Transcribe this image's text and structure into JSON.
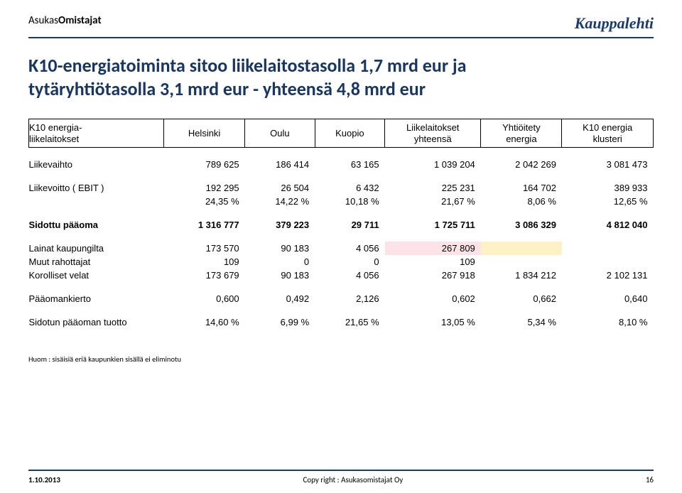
{
  "header": {
    "brand_prefix": "Asukas",
    "brand_suffix": "Omistajat",
    "brand_right": "Kauppalehti"
  },
  "title_line1": "K10-energiatoiminta sitoo liikelaitostasolla 1,7 mrd eur ja",
  "title_line2": "tytäryhtiötasolla 3,1 mrd eur  - yhteensä 4,8 mrd eur",
  "columns": {
    "c0a": "K10 energia-",
    "c0b": "liikelaitokset",
    "c1": "Helsinki",
    "c2": "Oulu",
    "c3": "Kuopio",
    "c4a": "Liikelaitokset",
    "c4b": "yhteensä",
    "c5a": "Yhtiöitety",
    "c5b": "energia",
    "c6a": "K10 energia",
    "c6b": "klusteri"
  },
  "rows": {
    "liikevaihto": {
      "label": "Liikevaihto",
      "v": [
        "789 625",
        "186 414",
        "63 165",
        "1 039 204",
        "2 042 269",
        "3 081 473"
      ]
    },
    "liikevoitto_abs": {
      "label": "Liikevoitto ( EBIT )",
      "v": [
        "192 295",
        "26 504",
        "6 432",
        "225 231",
        "164 702",
        "389 933"
      ]
    },
    "liikevoitto_pct": {
      "label": "",
      "v": [
        "24,35 %",
        "14,22 %",
        "10,18 %",
        "21,67 %",
        "8,06 %",
        "12,65 %"
      ]
    },
    "sidottu": {
      "label": "Sidottu pääoma",
      "v": [
        "1 316 777",
        "379 223",
        "29 711",
        "1 725 711",
        "3 086 329",
        "4 812 040"
      ]
    },
    "lainat": {
      "label": "Lainat kaupungilta",
      "v": [
        "173 570",
        "90 183",
        "4 056",
        "267 809",
        "",
        ""
      ]
    },
    "muut": {
      "label": "Muut rahottajat",
      "v": [
        "109",
        "0",
        "0",
        "109",
        "",
        ""
      ]
    },
    "korolliset": {
      "label": "Korolliset velat",
      "v": [
        "173 679",
        "90 183",
        "4 056",
        "267 918",
        "1 834 212",
        "2 102 131"
      ]
    },
    "paaomankierto": {
      "label": "Pääomankierto",
      "v": [
        "0,600",
        "0,492",
        "2,126",
        "0,602",
        "0,662",
        "0,640"
      ]
    },
    "tuotto": {
      "label": "Sidotun pääoman tuotto",
      "v": [
        "14,60 %",
        "6,99 %",
        "21,65 %",
        "13,05 %",
        "5,34 %",
        "8,10 %"
      ]
    }
  },
  "footnote": "Huom : sisäisiä eriä kaupunkien sisällä ei eliminotu",
  "footer": {
    "date": "1.10.2013",
    "copyright": "Copy right : Asukasomistajat Oy",
    "page": "16"
  },
  "colors": {
    "brand_blue": "#1a3a6e",
    "title_color": "#18365f",
    "highlight_pink": "#fde3e8",
    "highlight_yellow": "#fff1c6"
  }
}
